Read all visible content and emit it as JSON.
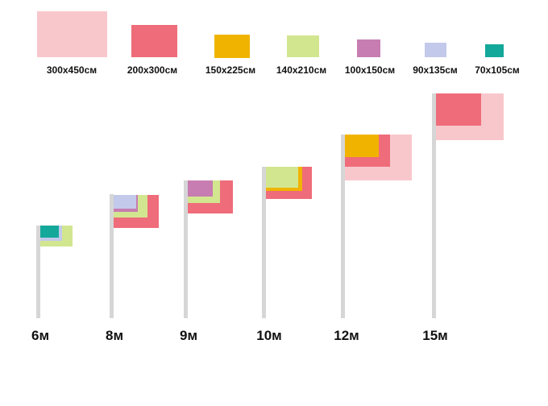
{
  "legend": [
    {
      "size": "300x450см",
      "color": "#f8c7cc"
    },
    {
      "size": "200x300см",
      "color": "#ef6c7a"
    },
    {
      "size": "150x225см",
      "color": "#f0b400"
    },
    {
      "size": "140x210см",
      "color": "#d2e690"
    },
    {
      "size": "100x150см",
      "color": "#c77db1"
    },
    {
      "size": "90x135см",
      "color": "#c2c9ea"
    },
    {
      "size": "70x105см",
      "color": "#14a89a"
    }
  ],
  "poles": [
    {
      "height": "6м",
      "flags": [
        "140x210см",
        "90x135см",
        "70x105см"
      ]
    },
    {
      "height": "8м",
      "flags": [
        "200x300см",
        "140x210см",
        "100x150см",
        "90x135см"
      ]
    },
    {
      "height": "9м",
      "flags": [
        "200x300см",
        "140x210см",
        "100x150см"
      ]
    },
    {
      "height": "10м",
      "flags": [
        "200x300см",
        "150x225см",
        "140x210см"
      ]
    },
    {
      "height": "12м",
      "flags": [
        "300x450см",
        "200x300см",
        "150x225см"
      ]
    },
    {
      "height": "15м",
      "flags": [
        "300x450см",
        "200x300см"
      ]
    }
  ]
}
